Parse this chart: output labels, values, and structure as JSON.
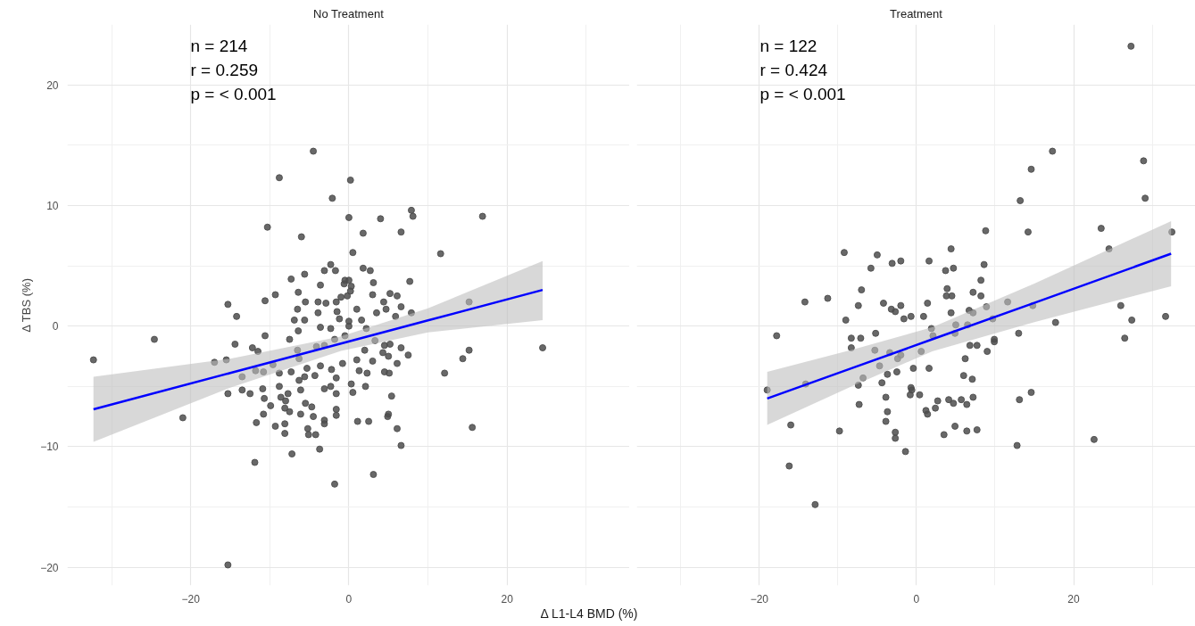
{
  "chart_data": [
    {
      "type": "scatter",
      "title": "No Treatment",
      "xlabel": "Δ L1-L4 BMD (%)",
      "ylabel": "Δ TBS (%)",
      "annotations": [
        "n = 214",
        "r = 0.259",
        "p = < 0.001"
      ],
      "xlim": [
        -35.6,
        35.5
      ],
      "ylim": [
        -21.5,
        25
      ],
      "xticks": [
        -20,
        0,
        20
      ],
      "yticks": [
        -20,
        -10,
        0,
        10,
        20
      ],
      "grid": true,
      "series": [
        {
          "marker": "circle",
          "color": "#4d4d4d",
          "x": [
            -4.5,
            -8.8,
            0.2,
            -2.1,
            7.9,
            8.1,
            0,
            4.0,
            16.9,
            -10.3,
            1.8,
            6.6,
            -6.0,
            0.5,
            11.6,
            -2.3,
            -3.1,
            -1.7,
            1.8,
            2.7,
            -5.6,
            -7.3,
            -0.5,
            0,
            3.1,
            7.7,
            -3.6,
            -0.6,
            0.3,
            0.2,
            -6.4,
            -9.3,
            3.0,
            5.2,
            6.1,
            -1.0,
            -0.2,
            -10.6,
            -15.3,
            -5.5,
            -3.9,
            -2.9,
            -1.6,
            4.4,
            6.6,
            15.2,
            -6.5,
            -3.9,
            -1.5,
            1.0,
            3.5,
            4.7,
            7.9,
            -14.2,
            -6.9,
            -5.6,
            -1.2,
            0,
            1.6,
            5.9,
            -24.6,
            -32.3,
            -10.6,
            -14.4,
            -7.5,
            -6.4,
            -2.3,
            -3.6,
            0,
            -12.2,
            -11.5,
            -17.0,
            -15.5,
            -9.6,
            -6.5,
            -4.1,
            -3.1,
            -1.8,
            -0.5,
            2.2,
            3.3,
            4.5,
            5.2,
            6.6,
            7.5,
            2.0,
            4.3,
            5.0,
            15.2,
            14.4,
            24.5,
            1.0,
            3.0,
            6.1,
            -0.8,
            -6.3,
            -5.3,
            -3.6,
            -2.2,
            -7.3,
            -8.8,
            -11.8,
            -10.8,
            -13.5,
            -5.6,
            -4.3,
            -1.6,
            1.3,
            2.3,
            4.5,
            5.1,
            12.1,
            -6.3,
            -8.8,
            -10.9,
            -6.1,
            -3.1,
            -2.3,
            0.3,
            2.1,
            -15.3,
            -13.5,
            -12.5,
            -7.7,
            -1.6,
            0.5,
            5.4,
            -10.7,
            -8.6,
            -8.0,
            -9.9,
            -5.5,
            -4.7,
            -8.1,
            -7.5,
            -6.1,
            -1.6,
            -1.6,
            -10.8,
            -4.5,
            5.0,
            4.9,
            -21.0,
            -11.7,
            -3.1,
            -3.1,
            1.1,
            2.5,
            -9.3,
            -8.1,
            -5.2,
            -8.1,
            -5.1,
            -4.2,
            6.1,
            15.6,
            6.6,
            -7.2,
            -3.7,
            -11.9,
            3.1,
            -1.8,
            -15.3
          ],
          "values": [
            14.5,
            12.3,
            12.1,
            10.6,
            9.6,
            9.1,
            9.0,
            8.9,
            9.1,
            8.2,
            7.7,
            7.8,
            7.4,
            6.1,
            6.0,
            5.1,
            4.6,
            4.6,
            4.8,
            4.6,
            4.3,
            3.9,
            3.8,
            3.8,
            3.6,
            3.7,
            3.4,
            3.5,
            3.3,
            2.9,
            2.8,
            2.6,
            2.6,
            2.7,
            2.5,
            2.4,
            2.5,
            2.1,
            1.8,
            2.0,
            2.0,
            1.9,
            2.0,
            2.0,
            1.6,
            2.0,
            1.4,
            1.1,
            1.2,
            1.4,
            1.1,
            1.4,
            1.1,
            0.8,
            0.5,
            0.5,
            0.6,
            0.4,
            0.5,
            0.8,
            -1.1,
            -2.8,
            -0.8,
            -1.5,
            -1.1,
            -0.4,
            -0.2,
            -0.1,
            0,
            -1.8,
            -2.1,
            -3.0,
            -2.8,
            -3.2,
            -2.0,
            -1.7,
            -1.6,
            -1.1,
            -0.8,
            -0.2,
            -1.2,
            -1.6,
            -1.5,
            -1.8,
            -2.4,
            -2.0,
            -2.2,
            -2.5,
            -2.0,
            -2.7,
            -1.8,
            -2.8,
            -2.9,
            -3.1,
            -3.1,
            -2.7,
            -3.5,
            -3.3,
            -3.6,
            -3.8,
            -3.9,
            -3.7,
            -3.8,
            -4.2,
            -4.2,
            -4.1,
            -4.3,
            -3.7,
            -3.9,
            -3.8,
            -3.9,
            -3.9,
            -4.5,
            -5.0,
            -5.2,
            -5.3,
            -5.2,
            -5.0,
            -4.8,
            -5.0,
            -5.6,
            -5.3,
            -5.6,
            -5.6,
            -5.6,
            -5.5,
            -5.8,
            -6.0,
            -5.9,
            -6.2,
            -6.6,
            -6.4,
            -6.7,
            -6.8,
            -7.1,
            -7.3,
            -6.9,
            -7.4,
            -7.3,
            -7.5,
            -7.3,
            -7.5,
            -7.6,
            -8.0,
            -7.8,
            -8.1,
            -7.9,
            -7.9,
            -8.3,
            -8.1,
            -8.5,
            -8.9,
            -9.0,
            -9.0,
            -8.5,
            -8.4,
            -9.9,
            -10.6,
            -10.2,
            -11.3,
            -12.3,
            -13.1,
            -19.8
          ]
        },
        {
          "type": "line",
          "color": "#0000ff",
          "x": [
            -32.3,
            -15,
            -1,
            10,
            24.5
          ],
          "values": [
            -6.9,
            -3.89,
            -1.45,
            0.47,
            3.0
          ],
          "lower": [
            -9.6,
            -5.1,
            -2.05,
            -0.53,
            0.5
          ],
          "upper": [
            -4.2,
            -2.7,
            -0.85,
            1.47,
            5.4
          ]
        }
      ]
    },
    {
      "type": "scatter",
      "title": "Treatment",
      "annotations": [
        "n = 122",
        "r = 0.424",
        "p = < 0.001"
      ],
      "xlim": [
        -35.6,
        35.5
      ],
      "ylim": [
        -21.5,
        25
      ],
      "xticks": [
        -20,
        0,
        20
      ],
      "yticks": [
        -20,
        -10,
        0,
        10,
        20
      ],
      "tick_labels": "x",
      "grid": true,
      "series": [
        {
          "marker": "circle",
          "color": "#4d4d4d",
          "x": [
            27.3,
            17.3,
            28.9,
            14.6,
            13.2,
            29.1,
            8.8,
            14.2,
            23.5,
            32.5,
            24.5,
            4.4,
            -9.2,
            -5.0,
            -3.1,
            -2.0,
            1.6,
            -5.8,
            3.7,
            4.7,
            8.6,
            8.2,
            -7.0,
            3.9,
            7.2,
            3.8,
            4.5,
            8.2,
            -14.2,
            -11.3,
            -7.4,
            -4.2,
            -2.0,
            1.4,
            8.9,
            11.6,
            14.8,
            26.0,
            -3.2,
            -2.7,
            4.4,
            6.7,
            7.2,
            -9.0,
            -1.6,
            -0.7,
            0.9,
            31.7,
            27.4,
            17.7,
            9.7,
            -17.8,
            -8.3,
            -7.1,
            -5.2,
            -8.3,
            -5.3,
            -3.4,
            -2.0,
            -2.4,
            0.6,
            1.9,
            2.1,
            5.0,
            6.5,
            4.9,
            9.9,
            9.9,
            13.0,
            6.8,
            7.7,
            9.0,
            26.5,
            6.2,
            -4.7,
            -3.7,
            -2.5,
            -0.4,
            1.6,
            -6.8,
            -7.4,
            -4.4,
            -19.0,
            -14.1,
            6.0,
            7.1,
            -0.7,
            -0.6,
            -0.8,
            0.4,
            -3.9,
            -7.3,
            2.7,
            4.1,
            4.7,
            5.7,
            6.4,
            7.2,
            14.6,
            13.1,
            -3.7,
            1.2,
            1.4,
            2.4,
            -3.9,
            -16.0,
            -9.8,
            -2.7,
            -2.7,
            3.5,
            4.9,
            6.4,
            7.7,
            -1.4,
            12.8,
            22.6,
            -16.2,
            -12.9
          ],
          "values": [
            23.2,
            14.5,
            13.7,
            13.0,
            10.4,
            10.6,
            7.9,
            7.8,
            8.1,
            7.8,
            6.4,
            6.4,
            6.1,
            5.9,
            5.2,
            5.4,
            5.4,
            4.8,
            4.6,
            4.8,
            5.1,
            3.8,
            3.0,
            3.1,
            2.8,
            2.5,
            2.5,
            2.5,
            2.0,
            2.3,
            1.7,
            1.9,
            1.7,
            1.9,
            1.6,
            2.0,
            1.7,
            1.7,
            1.4,
            1.2,
            1.1,
            1.3,
            1.1,
            0.5,
            0.6,
            0.8,
            0.8,
            0.8,
            0.5,
            0.3,
            0.6,
            -0.8,
            -1.0,
            -1.0,
            -0.6,
            -1.8,
            -2.0,
            -2.2,
            -2.4,
            -2.7,
            -2.1,
            -0.2,
            -0.8,
            0.1,
            0.1,
            -0.6,
            -1.1,
            -1.3,
            -0.6,
            -1.6,
            -1.6,
            -2.1,
            -1.0,
            -2.7,
            -3.3,
            -4.0,
            -3.8,
            -3.5,
            -3.5,
            -4.3,
            -4.9,
            -4.7,
            -5.3,
            -4.8,
            -4.1,
            -4.4,
            -5.1,
            -5.3,
            -5.7,
            -5.7,
            -5.9,
            -6.5,
            -6.2,
            -6.1,
            -6.4,
            -6.1,
            -6.5,
            -5.9,
            -5.5,
            -6.1,
            -7.1,
            -7.0,
            -7.3,
            -6.8,
            -7.9,
            -8.2,
            -8.7,
            -8.8,
            -9.3,
            -9.0,
            -8.3,
            -8.7,
            -8.6,
            -10.4,
            -9.9,
            -9.4,
            -11.6,
            -14.8
          ]
        },
        {
          "type": "line",
          "color": "#0000ff",
          "x": [
            -19.0,
            -8,
            2,
            15,
            32.4
          ],
          "values": [
            -6.0,
            -3.43,
            -1.1,
            1.93,
            6.0
          ],
          "lower": [
            -8.2,
            -4.93,
            -2.1,
            0.33,
            3.3
          ],
          "upper": [
            -3.8,
            -1.93,
            -0.1,
            3.53,
            8.7
          ]
        }
      ]
    }
  ]
}
